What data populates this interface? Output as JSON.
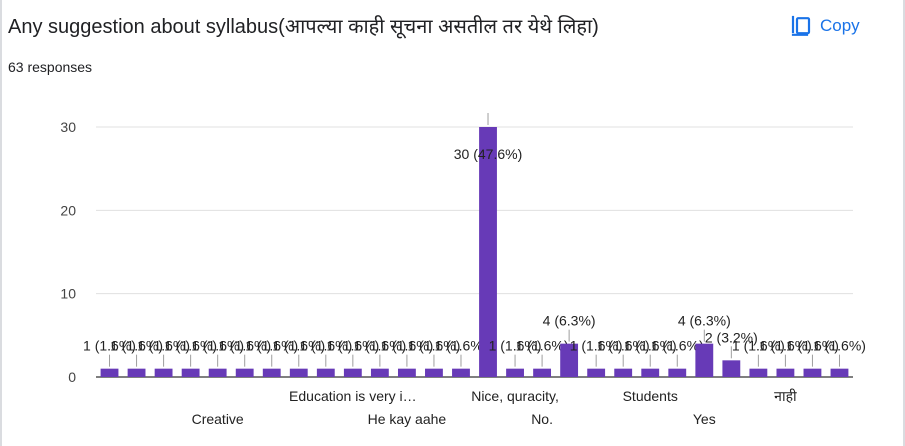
{
  "header": {
    "title": "Any suggestion about syllabus(आपल्या काही सूचना असतील तर येथे लिहा)",
    "responses": "63 responses",
    "copy_label": "Copy"
  },
  "colors": {
    "bar": "#673ab7",
    "accent": "#1a73e8",
    "grid": "#e0e0e0"
  },
  "icons": {
    "copy": "copy-icon"
  },
  "chart_data": {
    "type": "bar",
    "title": "",
    "xlabel": "",
    "ylabel": "",
    "ylim": [
      0,
      30
    ],
    "yticks": [
      0,
      10,
      20,
      30
    ],
    "grid": true,
    "legend": "none",
    "visible_category_labels": [
      "Creative",
      "Education is very i…",
      "He kay aahe",
      "Nice, quracity,",
      "No.",
      "Students",
      "Yes",
      "नाही"
    ],
    "values": [
      1,
      1,
      1,
      1,
      1,
      1,
      1,
      1,
      1,
      1,
      1,
      1,
      1,
      1,
      30,
      1,
      1,
      4,
      1,
      1,
      1,
      1,
      4,
      2,
      1,
      1,
      1,
      1
    ],
    "data_labels": [
      "1 (1.6%)",
      "1 (1.6%)",
      "1 (1.6%)",
      "1 (1.6%)",
      "1 (1.6%)",
      "1 (1.6%)",
      "1 (1.6%)",
      "1 (1.6%)",
      "1 (1.6%)",
      "1 (1.6%)",
      "1 (1.6%)",
      "1 (1.6%)",
      "1 (1.6%)",
      "1 (1.6%)",
      "30 (47.6%)",
      "1 (1.6%)",
      "1 (1.6%)",
      "4 (6.3%)",
      "1 (1.6%)",
      "1 (1.6%)",
      "1 (1.6%)",
      "1 (1.6%)",
      "4 (6.3%)",
      "2 (3.2%)",
      "1 (1.6%)",
      "1 (1.6%)",
      "1 (1.6%)",
      "1 (1.6%)"
    ]
  }
}
